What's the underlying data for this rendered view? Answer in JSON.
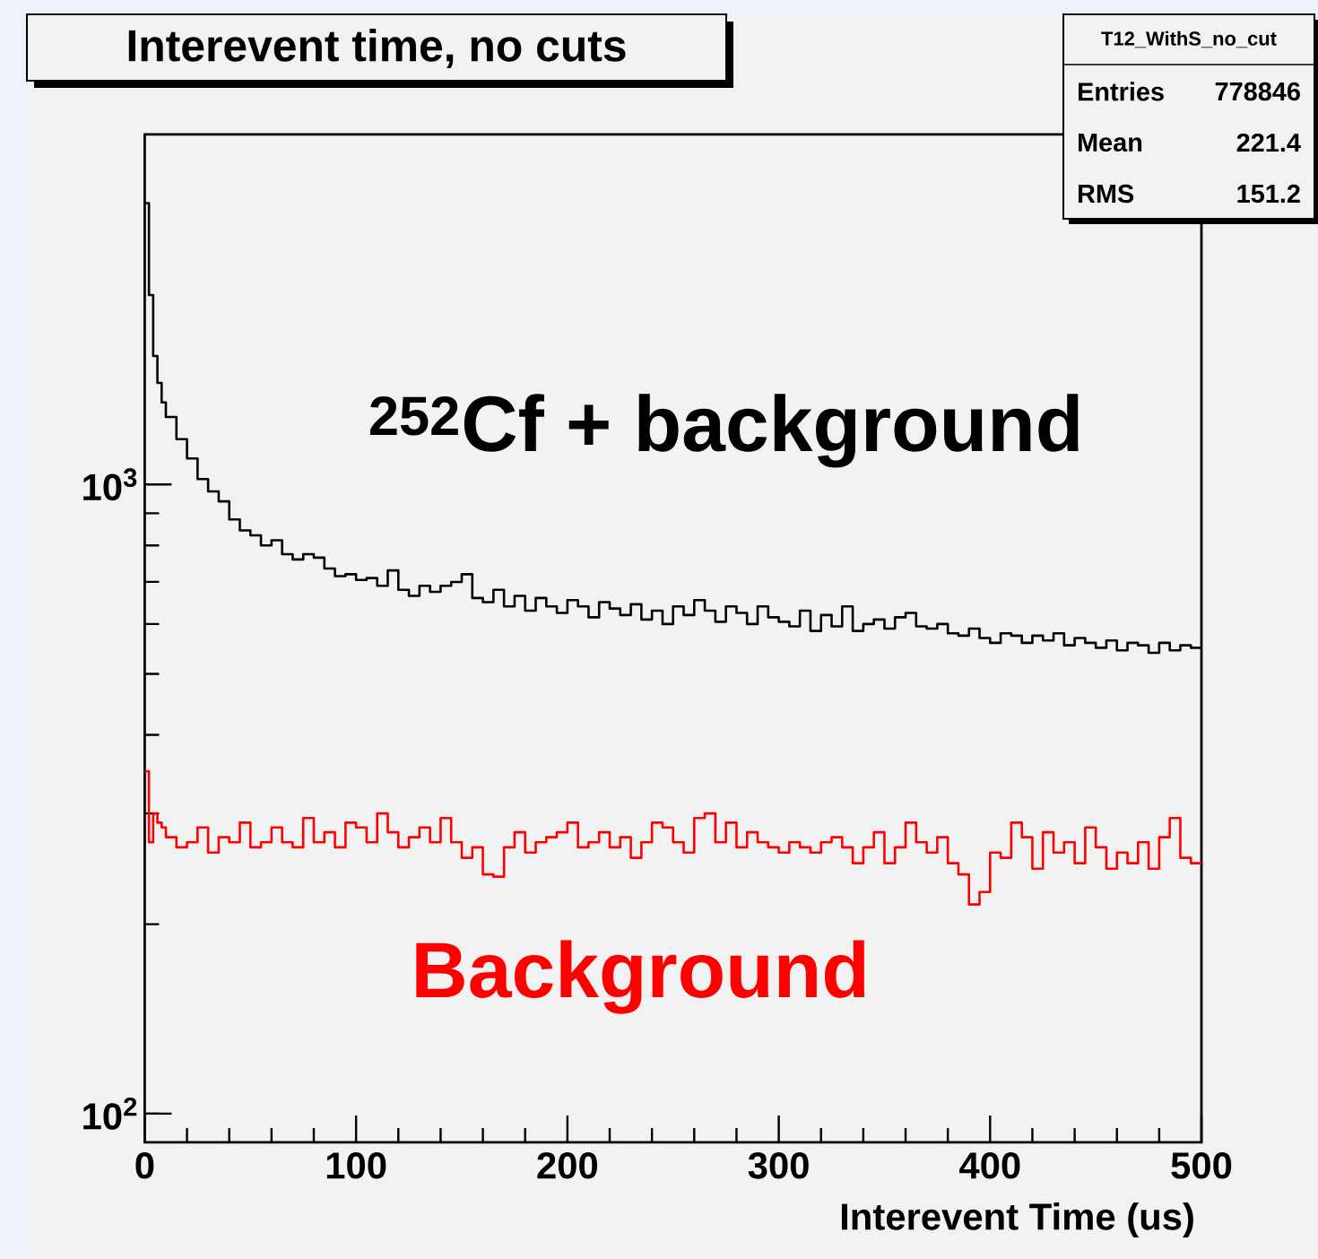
{
  "chart_data": {
    "type": "histogram",
    "title": "Interevent time, no cuts",
    "xlabel": "Interevent Time (us)",
    "bins": [
      0,
      2,
      4,
      6,
      8,
      10,
      15,
      20,
      25,
      30,
      35,
      40,
      45,
      50,
      55,
      60,
      65,
      70,
      75,
      80,
      85,
      90,
      95,
      100,
      105,
      110,
      115,
      120,
      125,
      130,
      135,
      140,
      145,
      150,
      155,
      160,
      165,
      170,
      175,
      180,
      185,
      190,
      195,
      200,
      205,
      210,
      215,
      220,
      225,
      230,
      235,
      240,
      245,
      250,
      255,
      260,
      265,
      270,
      275,
      280,
      285,
      290,
      295,
      300,
      305,
      310,
      315,
      320,
      325,
      330,
      335,
      340,
      345,
      350,
      355,
      360,
      365,
      370,
      375,
      380,
      385,
      390,
      395,
      400,
      405,
      410,
      415,
      420,
      425,
      430,
      435,
      440,
      445,
      450,
      455,
      460,
      465,
      470,
      475,
      480,
      485,
      490,
      495,
      500
    ],
    "series": [
      {
        "color": "#000000",
        "values": [
          2800,
          2000,
          1600,
          1450,
          1350,
          1280,
          1180,
          1100,
          1020,
          975,
          940,
          880,
          845,
          830,
          800,
          815,
          775,
          760,
          775,
          765,
          735,
          715,
          720,
          705,
          710,
          690,
          730,
          680,
          665,
          690,
          675,
          690,
          700,
          720,
          660,
          650,
          680,
          640,
          665,
          630,
          660,
          640,
          625,
          655,
          640,
          615,
          650,
          635,
          620,
          645,
          610,
          630,
          600,
          640,
          620,
          655,
          630,
          605,
          640,
          625,
          600,
          640,
          615,
          605,
          595,
          630,
          585,
          620,
          595,
          640,
          585,
          600,
          610,
          590,
          615,
          625,
          595,
          590,
          600,
          580,
          575,
          590,
          570,
          560,
          580,
          575,
          560,
          575,
          565,
          580,
          555,
          570,
          560,
          550,
          565,
          545,
          560,
          555,
          540,
          560,
          545,
          555,
          550
        ]
      },
      {
        "color": "#ff0000",
        "values": [
          350,
          270,
          300,
          290,
          285,
          275,
          265,
          270,
          285,
          260,
          275,
          270,
          290,
          265,
          270,
          285,
          270,
          265,
          295,
          270,
          280,
          265,
          290,
          285,
          270,
          300,
          280,
          265,
          275,
          285,
          270,
          295,
          270,
          255,
          265,
          240,
          238,
          265,
          280,
          260,
          270,
          275,
          280,
          290,
          265,
          270,
          280,
          265,
          275,
          255,
          270,
          290,
          285,
          270,
          260,
          295,
          300,
          270,
          290,
          265,
          280,
          270,
          265,
          260,
          270,
          265,
          260,
          270,
          275,
          265,
          250,
          265,
          280,
          250,
          265,
          290,
          270,
          260,
          275,
          250,
          240,
          215,
          225,
          260,
          255,
          290,
          275,
          245,
          280,
          260,
          270,
          250,
          285,
          265,
          245,
          260,
          250,
          270,
          245,
          275,
          295,
          255,
          250
        ]
      }
    ],
    "xlim": [
      0,
      500
    ],
    "xticks": [
      0,
      100,
      200,
      300,
      400,
      500
    ],
    "ylim": [
      90,
      3600
    ],
    "yticks": [
      {
        "value": 100,
        "label": "10$^{2}$"
      },
      {
        "value": 1000,
        "label": "10$^{3}$"
      }
    ],
    "log": "y",
    "annotations": [
      "$^{252}$Cf + background",
      "Background",
      "T12_WithS_no_cut",
      "Entries",
      "778846",
      "Mean",
      "221.4",
      "RMS",
      "151.2"
    ]
  }
}
